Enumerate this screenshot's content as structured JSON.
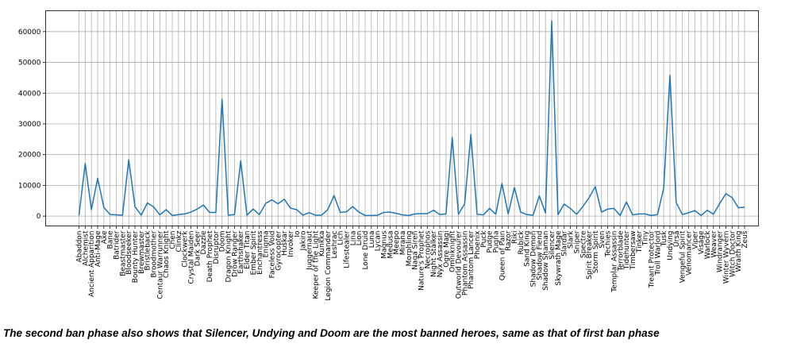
{
  "caption": "The second ban phase also shows that Silencer, Undying and Doom are the most banned heroes, same as that of first ban phase",
  "chart_data": {
    "type": "line",
    "title": "",
    "xlabel": "",
    "ylabel": "",
    "ylim": [
      -3200,
      66800
    ],
    "yticks": [
      0,
      10000,
      20000,
      30000,
      40000,
      50000,
      60000
    ],
    "grid": true,
    "line_color": "#1f77b4",
    "series": [
      {
        "x": [
          "Abaddon",
          "Alchemist",
          "Ancient Apparition",
          "Anti-Mage",
          "Axe",
          "Bane",
          "Batrider",
          "Beastmaster",
          "Bloodseeker",
          "Bounty Hunter",
          "Brewmaster",
          "Bristleback",
          "Broodmother",
          "Centaur Warrunner",
          "Chaos Knight",
          "Chen",
          "Clinkz",
          "Clockwerk",
          "Crystal Maiden",
          "Dark Seer",
          "Dazzle",
          "Death Prophet",
          "Disruptor",
          "Doom",
          "Dragon Knight",
          "Drow Ranger",
          "Earthshaker",
          "Elder Titan",
          "Ember Spirit",
          "Enchantress",
          "Enigma",
          "Faceless Void",
          "Gyrocopter",
          "Huskar",
          "Invoker",
          "Io",
          "Jakiro",
          "Juggernaut",
          "Keeper of the Light",
          "Kunkka",
          "Legion Commander",
          "Leshrac",
          "Lich",
          "Lifestealer",
          "Lina",
          "Lion",
          "Lone Druid",
          "Luna",
          "Lycan",
          "Magnus",
          "Medusa",
          "Meepo",
          "Mirana",
          "Morphling",
          "Naga Siren",
          "Nature's Prophet",
          "Necrophos",
          "Night Stalker",
          "Nyx Assassin",
          "Ogre Magi",
          "Omniknight",
          "Outworld Devourer",
          "Phantom Assassin",
          "Phantom Lancer",
          "Phoenix",
          "Puck",
          "Pudge",
          "Pugna",
          "Queen of Pain",
          "Razor",
          "Riki",
          "Rubick",
          "Sand King",
          "Shadow Demon",
          "Shadow Fiend",
          "Shadow Shaman",
          "Silencer",
          "Skywrath Mage",
          "Slardar",
          "Slark",
          "Sniper",
          "Spectre",
          "Spirit Breaker",
          "Storm Spirit",
          "Sven",
          "Techies",
          "Templar Assassin",
          "Terrorblade",
          "Tidehunter",
          "Timbersaw",
          "Tinker",
          "Tiny",
          "Treant Protector",
          "Troll Warlord",
          "Tusk",
          "Undying",
          "Ursa",
          "Vengeful Spirit",
          "Venomancer",
          "Viper",
          "Visage",
          "Warlock",
          "Weaver",
          "Windranger",
          "Winter Wyvern",
          "Witch Doctor",
          "Wraith King",
          "Zeus"
        ],
        "y": [
          200,
          17100,
          2100,
          12300,
          2800,
          500,
          400,
          300,
          18300,
          3100,
          300,
          4300,
          3000,
          400,
          2100,
          200,
          500,
          700,
          1300,
          2300,
          3600,
          1200,
          1200,
          38000,
          300,
          500,
          18000,
          300,
          2300,
          500,
          4100,
          5300,
          4000,
          5500,
          2600,
          2100,
          300,
          1100,
          300,
          300,
          2100,
          6700,
          1200,
          1400,
          3100,
          1300,
          200,
          200,
          300,
          1200,
          1300,
          900,
          400,
          200,
          700,
          800,
          800,
          1900,
          500,
          700,
          25600,
          600,
          4000,
          26600,
          600,
          400,
          2500,
          600,
          10600,
          700,
          9300,
          1300,
          500,
          300,
          6600,
          1000,
          63500,
          500,
          3900,
          2500,
          600,
          3100,
          6000,
          9600,
          1300,
          2300,
          2500,
          200,
          4600,
          400,
          700,
          700,
          200,
          500,
          9100,
          45800,
          4400,
          500,
          1100,
          1800,
          200,
          1900,
          600,
          4100,
          7300,
          6000,
          2700,
          2900
        ]
      }
    ]
  }
}
